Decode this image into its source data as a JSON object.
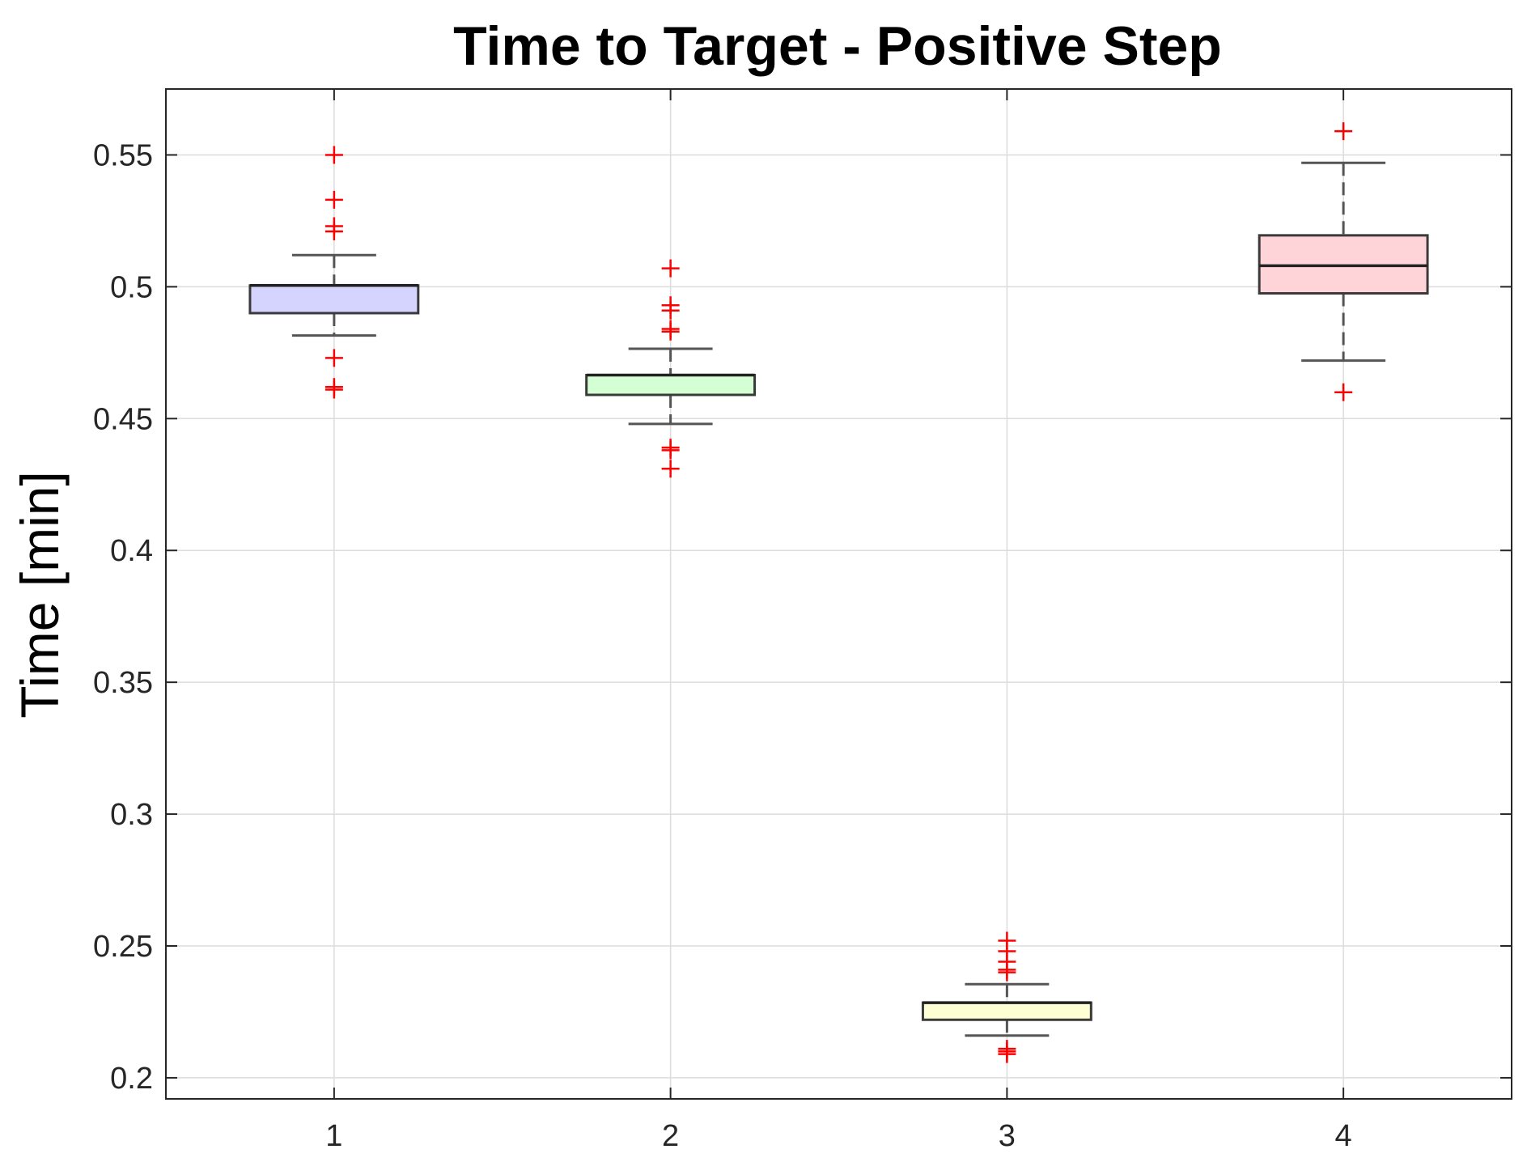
{
  "chart_data": {
    "type": "box",
    "title": "Time to Target - Positive Step",
    "xlabel": "",
    "ylabel": "Time [min]",
    "categories": [
      "1",
      "2",
      "3",
      "4"
    ],
    "ylim": [
      0.192,
      0.575
    ],
    "yticks": [
      0.2,
      0.25,
      0.3,
      0.35,
      0.4,
      0.45,
      0.5,
      0.55
    ],
    "ytick_labels": [
      "0.2",
      "0.25",
      "0.3",
      "0.35",
      "0.4",
      "0.45",
      "0.5",
      "0.55"
    ],
    "grid": true,
    "boxes": [
      {
        "category": "1",
        "q1": 0.49,
        "median": 0.5005,
        "q3": 0.5005,
        "whisker_low": 0.4815,
        "whisker_high": 0.512,
        "outliers": [
          0.55,
          0.533,
          0.523,
          0.521,
          0.473,
          0.462,
          0.461
        ],
        "fill": "#d4d4ff"
      },
      {
        "category": "2",
        "q1": 0.459,
        "median": 0.4665,
        "q3": 0.4665,
        "whisker_low": 0.448,
        "whisker_high": 0.4765,
        "outliers": [
          0.507,
          0.493,
          0.491,
          0.484,
          0.483,
          0.439,
          0.438,
          0.431
        ],
        "fill": "#d4ffd4"
      },
      {
        "category": "3",
        "q1": 0.222,
        "median": 0.2285,
        "q3": 0.2285,
        "whisker_low": 0.216,
        "whisker_high": 0.2355,
        "outliers": [
          0.252,
          0.248,
          0.244,
          0.241,
          0.24,
          0.211,
          0.21,
          0.209
        ],
        "fill": "#ffffd4"
      },
      {
        "category": "4",
        "q1": 0.4975,
        "median": 0.508,
        "q3": 0.5195,
        "whisker_low": 0.472,
        "whisker_high": 0.547,
        "outliers": [
          0.559,
          0.46
        ],
        "fill": "#ffd4d9"
      }
    ]
  }
}
